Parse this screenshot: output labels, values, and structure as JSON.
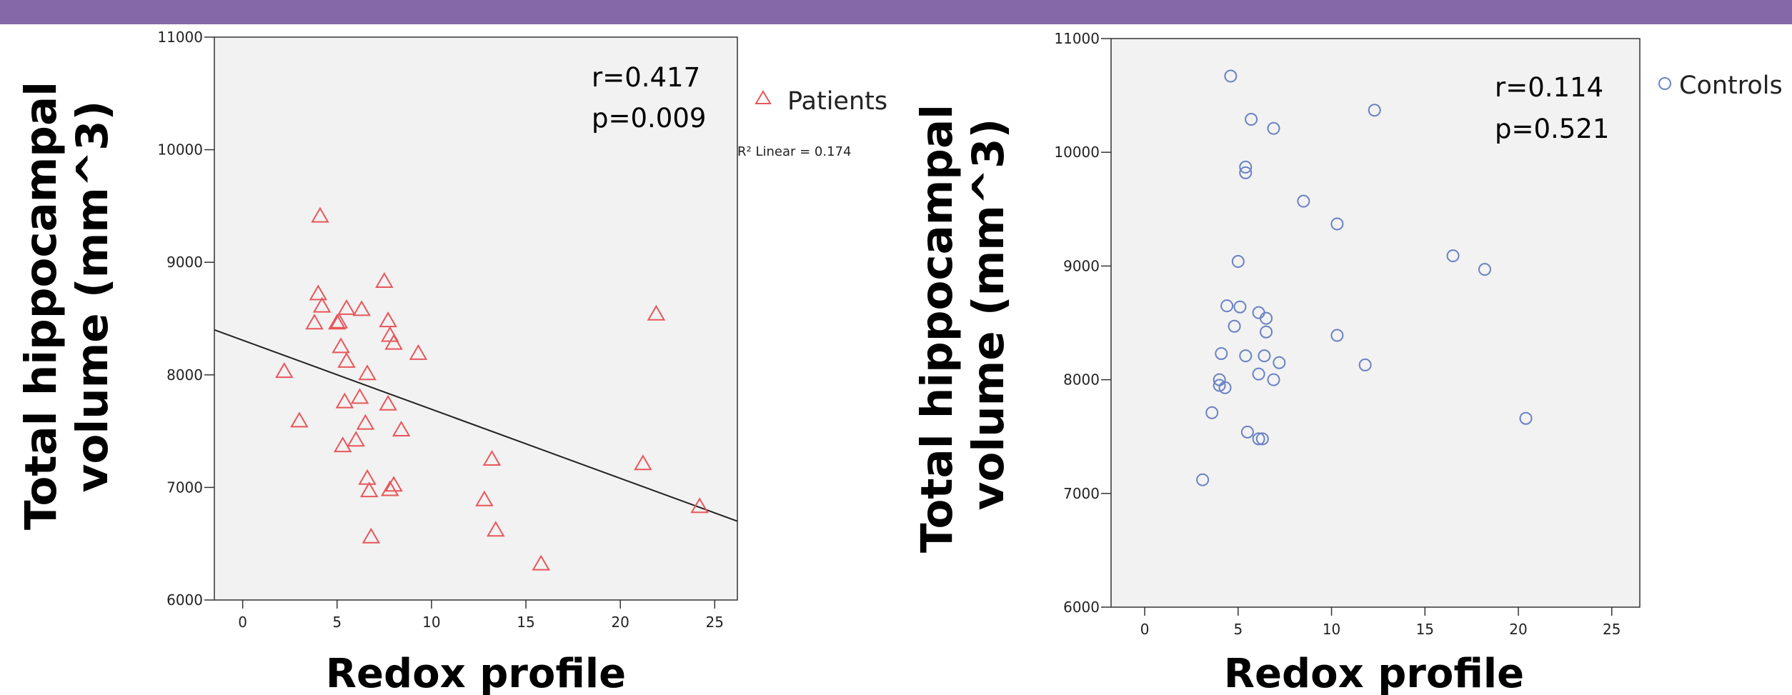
{
  "colors": {
    "top_bar": "#8468a8",
    "plot_bg": "#f2f2f2",
    "patients": "#e8565b",
    "controls": "#6a82c4",
    "fit_line": "#222222"
  },
  "chart_data": [
    {
      "type": "scatter",
      "xlabel": "Redox profile",
      "ylabel_lines": [
        "Total hippocampal",
        "volume (mm^3)"
      ],
      "xlim": [
        -1.5,
        26.2
      ],
      "ylim": [
        6000,
        11000
      ],
      "xticks": [
        0,
        5,
        10,
        15,
        20,
        25
      ],
      "yticks": [
        6000,
        7000,
        8000,
        9000,
        10000,
        11000
      ],
      "grid": false,
      "legend_position": "top-right",
      "stats": {
        "r": "r=0.417",
        "p": "p=0.009"
      },
      "fit_label": "R² Linear = 0.174",
      "fit_line": {
        "x": [
          -1.5,
          26.2
        ],
        "y": [
          8400,
          6700
        ]
      },
      "series": [
        {
          "name": "Patients",
          "marker": "triangle",
          "color": "#e8565b",
          "points": [
            [
              4.1,
              9410
            ],
            [
              2.2,
              8030
            ],
            [
              3.0,
              7590
            ],
            [
              3.8,
              8460
            ],
            [
              4.0,
              8720
            ],
            [
              4.2,
              8610
            ],
            [
              5.0,
              8460
            ],
            [
              5.1,
              8470
            ],
            [
              5.2,
              8250
            ],
            [
              5.5,
              8590
            ],
            [
              5.5,
              8120
            ],
            [
              5.4,
              7760
            ],
            [
              5.3,
              7370
            ],
            [
              6.0,
              7420
            ],
            [
              6.2,
              7800
            ],
            [
              6.3,
              8580
            ],
            [
              6.5,
              7570
            ],
            [
              6.6,
              8010
            ],
            [
              6.6,
              7080
            ],
            [
              6.7,
              6970
            ],
            [
              6.8,
              6560
            ],
            [
              7.5,
              8830
            ],
            [
              7.7,
              8480
            ],
            [
              7.8,
              8350
            ],
            [
              8.0,
              8280
            ],
            [
              7.7,
              7740
            ],
            [
              7.8,
              6980
            ],
            [
              8.0,
              7020
            ],
            [
              8.4,
              7510
            ],
            [
              9.3,
              8190
            ],
            [
              12.8,
              6890
            ],
            [
              13.2,
              7250
            ],
            [
              13.4,
              6620
            ],
            [
              15.8,
              6320
            ],
            [
              21.2,
              7210
            ],
            [
              21.9,
              8540
            ],
            [
              24.2,
              6830
            ]
          ]
        }
      ]
    },
    {
      "type": "scatter",
      "xlabel": "Redox profile",
      "ylabel_lines": [
        "Total hippocampal",
        "volume (mm^3)"
      ],
      "xlim": [
        -1.8,
        26.5
      ],
      "ylim": [
        6000,
        11000
      ],
      "xticks": [
        0,
        5,
        10,
        15,
        20,
        25
      ],
      "yticks": [
        6000,
        7000,
        8000,
        9000,
        10000,
        11000
      ],
      "grid": false,
      "legend_position": "top-right",
      "stats": {
        "r": "r=0.114",
        "p": "p=0.521"
      },
      "series": [
        {
          "name": "Controls",
          "marker": "circle",
          "color": "#6a82c4",
          "points": [
            [
              4.6,
              10670
            ],
            [
              5.7,
              10290
            ],
            [
              6.9,
              10210
            ],
            [
              12.3,
              10370
            ],
            [
              5.4,
              9870
            ],
            [
              5.4,
              9820
            ],
            [
              8.5,
              9570
            ],
            [
              10.3,
              9370
            ],
            [
              5.0,
              9040
            ],
            [
              16.5,
              9090
            ],
            [
              18.2,
              8970
            ],
            [
              4.4,
              8650
            ],
            [
              5.1,
              8640
            ],
            [
              6.1,
              8590
            ],
            [
              6.5,
              8540
            ],
            [
              4.8,
              8470
            ],
            [
              6.5,
              8420
            ],
            [
              10.3,
              8390
            ],
            [
              4.1,
              8230
            ],
            [
              5.4,
              8210
            ],
            [
              6.4,
              8210
            ],
            [
              7.2,
              8150
            ],
            [
              11.8,
              8130
            ],
            [
              6.1,
              8050
            ],
            [
              6.9,
              8000
            ],
            [
              4.0,
              8000
            ],
            [
              4.0,
              7950
            ],
            [
              4.3,
              7930
            ],
            [
              3.6,
              7710
            ],
            [
              20.4,
              7660
            ],
            [
              5.5,
              7540
            ],
            [
              6.1,
              7480
            ],
            [
              6.3,
              7480
            ],
            [
              3.1,
              7120
            ]
          ]
        }
      ]
    }
  ]
}
